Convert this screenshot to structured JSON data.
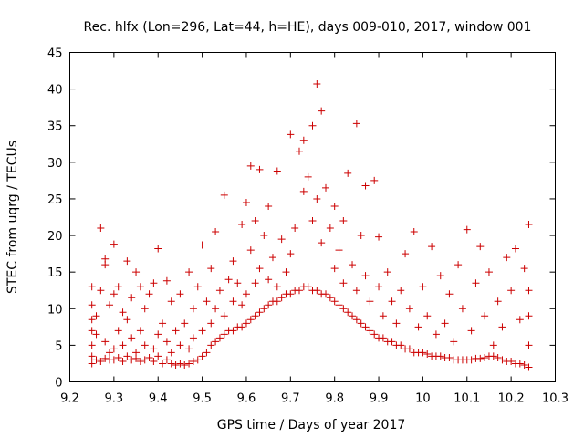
{
  "chart_data": {
    "type": "scatter",
    "title": "Rec. hlfx (Lon=296, Lat=44, h=HE), days 009-010, 2017, window 001",
    "xlabel": "GPS time / Days of year 2017",
    "ylabel": "STEC from uqrg / TECUs",
    "xlim": [
      9.2,
      10.3
    ],
    "ylim": [
      0,
      45
    ],
    "xticks": [
      "9.2",
      "9.3",
      "9.4",
      "9.5",
      "9.6",
      "9.7",
      "9.8",
      "9.9",
      "10",
      "10.1",
      "10.2",
      "10.3"
    ],
    "yticks": [
      "0",
      "5",
      "10",
      "15",
      "20",
      "25",
      "30",
      "35",
      "40",
      "45"
    ],
    "grid": false,
    "legend": "none",
    "marker": "+",
    "marker_color": "#cc0000",
    "series": [
      {
        "points": [
          [
            9.25,
            2.5
          ],
          [
            9.25,
            3.5
          ],
          [
            9.25,
            5.0
          ],
          [
            9.25,
            7.0
          ],
          [
            9.25,
            8.5
          ],
          [
            9.25,
            10.5
          ],
          [
            9.25,
            13.0
          ],
          [
            9.26,
            3.0
          ],
          [
            9.26,
            6.5
          ],
          [
            9.26,
            9.0
          ],
          [
            9.27,
            2.8
          ],
          [
            9.27,
            12.5
          ],
          [
            9.27,
            21.0
          ],
          [
            9.28,
            3.2
          ],
          [
            9.28,
            5.5
          ],
          [
            9.28,
            16.0
          ],
          [
            9.28,
            16.8
          ],
          [
            9.29,
            3.0
          ],
          [
            9.29,
            4.0
          ],
          [
            9.29,
            10.5
          ],
          [
            9.3,
            3.0
          ],
          [
            9.3,
            4.5
          ],
          [
            9.3,
            12.0
          ],
          [
            9.3,
            18.8
          ],
          [
            9.31,
            3.3
          ],
          [
            9.31,
            7.0
          ],
          [
            9.31,
            13.0
          ],
          [
            9.32,
            2.8
          ],
          [
            9.32,
            5.0
          ],
          [
            9.32,
            9.5
          ],
          [
            9.33,
            3.5
          ],
          [
            9.33,
            8.5
          ],
          [
            9.33,
            16.5
          ],
          [
            9.34,
            3.0
          ],
          [
            9.34,
            6.0
          ],
          [
            9.34,
            11.5
          ],
          [
            9.35,
            3.2
          ],
          [
            9.35,
            4.0
          ],
          [
            9.35,
            15.0
          ],
          [
            9.36,
            2.8
          ],
          [
            9.36,
            7.0
          ],
          [
            9.36,
            13.0
          ],
          [
            9.37,
            3.0
          ],
          [
            9.37,
            5.0
          ],
          [
            9.37,
            10.0
          ],
          [
            9.38,
            3.3
          ],
          [
            9.38,
            12.0
          ],
          [
            9.39,
            2.8
          ],
          [
            9.39,
            4.5
          ],
          [
            9.39,
            13.5
          ],
          [
            9.4,
            3.5
          ],
          [
            9.4,
            6.5
          ],
          [
            9.4,
            18.2
          ],
          [
            9.41,
            2.5
          ],
          [
            9.41,
            8.0
          ],
          [
            9.42,
            3.0
          ],
          [
            9.42,
            5.5
          ],
          [
            9.42,
            13.8
          ],
          [
            9.43,
            2.5
          ],
          [
            9.43,
            4.0
          ],
          [
            9.43,
            11.0
          ],
          [
            9.44,
            2.3
          ],
          [
            9.44,
            7.0
          ],
          [
            9.45,
            2.5
          ],
          [
            9.45,
            5.0
          ],
          [
            9.45,
            12.0
          ],
          [
            9.46,
            2.3
          ],
          [
            9.46,
            8.0
          ],
          [
            9.47,
            2.5
          ],
          [
            9.47,
            4.5
          ],
          [
            9.47,
            15.0
          ],
          [
            9.48,
            2.8
          ],
          [
            9.48,
            6.0
          ],
          [
            9.48,
            10.0
          ],
          [
            9.49,
            3.0
          ],
          [
            9.49,
            13.0
          ],
          [
            9.5,
            3.5
          ],
          [
            9.5,
            7.0
          ],
          [
            9.5,
            18.7
          ],
          [
            9.51,
            4.0
          ],
          [
            9.51,
            11.0
          ],
          [
            9.52,
            5.0
          ],
          [
            9.52,
            8.0
          ],
          [
            9.52,
            15.5
          ],
          [
            9.53,
            5.5
          ],
          [
            9.53,
            10.0
          ],
          [
            9.53,
            20.5
          ],
          [
            9.54,
            6.0
          ],
          [
            9.54,
            12.5
          ],
          [
            9.55,
            6.5
          ],
          [
            9.55,
            9.0
          ],
          [
            9.55,
            25.5
          ],
          [
            9.56,
            7.0
          ],
          [
            9.56,
            14.0
          ],
          [
            9.57,
            7.0
          ],
          [
            9.57,
            11.0
          ],
          [
            9.57,
            16.5
          ],
          [
            9.58,
            7.5
          ],
          [
            9.58,
            13.5
          ],
          [
            9.59,
            7.5
          ],
          [
            9.59,
            10.5
          ],
          [
            9.59,
            21.5
          ],
          [
            9.6,
            8.0
          ],
          [
            9.6,
            12.0
          ],
          [
            9.6,
            24.5
          ],
          [
            9.61,
            8.5
          ],
          [
            9.61,
            18.0
          ],
          [
            9.61,
            29.5
          ],
          [
            9.62,
            9.0
          ],
          [
            9.62,
            13.5
          ],
          [
            9.62,
            22.0
          ],
          [
            9.63,
            9.5
          ],
          [
            9.63,
            15.5
          ],
          [
            9.63,
            29.0
          ],
          [
            9.64,
            10.0
          ],
          [
            9.64,
            20.0
          ],
          [
            9.65,
            10.5
          ],
          [
            9.65,
            14.0
          ],
          [
            9.65,
            24.0
          ],
          [
            9.66,
            11.0
          ],
          [
            9.66,
            17.0
          ],
          [
            9.67,
            11.0
          ],
          [
            9.67,
            13.0
          ],
          [
            9.67,
            28.8
          ],
          [
            9.68,
            11.5
          ],
          [
            9.68,
            19.5
          ],
          [
            9.69,
            12.0
          ],
          [
            9.69,
            15.0
          ],
          [
            9.7,
            12.0
          ],
          [
            9.7,
            17.5
          ],
          [
            9.7,
            33.8
          ],
          [
            9.71,
            12.5
          ],
          [
            9.71,
            21.0
          ],
          [
            9.72,
            12.5
          ],
          [
            9.72,
            31.5
          ],
          [
            9.73,
            13.0
          ],
          [
            9.73,
            26.0
          ],
          [
            9.73,
            33.0
          ],
          [
            9.74,
            13.0
          ],
          [
            9.74,
            28.0
          ],
          [
            9.75,
            12.5
          ],
          [
            9.75,
            22.0
          ],
          [
            9.75,
            35.0
          ],
          [
            9.76,
            12.5
          ],
          [
            9.76,
            25.0
          ],
          [
            9.76,
            40.7
          ],
          [
            9.77,
            12.0
          ],
          [
            9.77,
            19.0
          ],
          [
            9.77,
            37.0
          ],
          [
            9.78,
            12.0
          ],
          [
            9.78,
            26.5
          ],
          [
            9.79,
            11.5
          ],
          [
            9.79,
            21.0
          ],
          [
            9.8,
            11.0
          ],
          [
            9.8,
            15.5
          ],
          [
            9.8,
            24.0
          ],
          [
            9.81,
            10.5
          ],
          [
            9.81,
            18.0
          ],
          [
            9.82,
            10.0
          ],
          [
            9.82,
            13.5
          ],
          [
            9.82,
            22.0
          ],
          [
            9.83,
            9.5
          ],
          [
            9.83,
            28.5
          ],
          [
            9.84,
            9.0
          ],
          [
            9.84,
            16.0
          ],
          [
            9.85,
            8.5
          ],
          [
            9.85,
            12.5
          ],
          [
            9.85,
            35.3
          ],
          [
            9.86,
            8.0
          ],
          [
            9.86,
            20.0
          ],
          [
            9.87,
            7.5
          ],
          [
            9.87,
            14.5
          ],
          [
            9.87,
            26.8
          ],
          [
            9.88,
            7.0
          ],
          [
            9.88,
            11.0
          ],
          [
            9.89,
            6.5
          ],
          [
            9.89,
            27.5
          ],
          [
            9.9,
            6.0
          ],
          [
            9.9,
            13.0
          ],
          [
            9.9,
            19.8
          ],
          [
            9.91,
            6.0
          ],
          [
            9.91,
            9.0
          ],
          [
            9.92,
            5.5
          ],
          [
            9.92,
            15.0
          ],
          [
            9.93,
            5.5
          ],
          [
            9.93,
            11.0
          ],
          [
            9.94,
            5.0
          ],
          [
            9.94,
            8.0
          ],
          [
            9.95,
            5.0
          ],
          [
            9.95,
            12.5
          ],
          [
            9.96,
            4.5
          ],
          [
            9.96,
            17.5
          ],
          [
            9.97,
            4.5
          ],
          [
            9.97,
            10.0
          ],
          [
            9.98,
            4.0
          ],
          [
            9.98,
            20.5
          ],
          [
            9.99,
            4.0
          ],
          [
            9.99,
            7.5
          ],
          [
            10.0,
            4.0
          ],
          [
            10.0,
            13.0
          ],
          [
            10.01,
            3.8
          ],
          [
            10.01,
            9.0
          ],
          [
            10.02,
            3.5
          ],
          [
            10.02,
            18.5
          ],
          [
            10.03,
            3.5
          ],
          [
            10.03,
            6.5
          ],
          [
            10.04,
            3.5
          ],
          [
            10.04,
            14.5
          ],
          [
            10.05,
            3.3
          ],
          [
            10.05,
            8.0
          ],
          [
            10.06,
            3.3
          ],
          [
            10.06,
            12.0
          ],
          [
            10.07,
            3.0
          ],
          [
            10.07,
            5.5
          ],
          [
            10.08,
            3.0
          ],
          [
            10.08,
            16.0
          ],
          [
            10.09,
            3.0
          ],
          [
            10.09,
            10.0
          ],
          [
            10.1,
            3.0
          ],
          [
            10.1,
            20.8
          ],
          [
            10.11,
            3.0
          ],
          [
            10.11,
            7.0
          ],
          [
            10.12,
            3.2
          ],
          [
            10.12,
            13.5
          ],
          [
            10.13,
            3.2
          ],
          [
            10.13,
            18.5
          ],
          [
            10.14,
            3.3
          ],
          [
            10.14,
            9.0
          ],
          [
            10.15,
            3.5
          ],
          [
            10.15,
            15.0
          ],
          [
            10.16,
            3.5
          ],
          [
            10.16,
            5.0
          ],
          [
            10.17,
            3.3
          ],
          [
            10.17,
            11.0
          ],
          [
            10.18,
            3.0
          ],
          [
            10.18,
            7.5
          ],
          [
            10.19,
            2.8
          ],
          [
            10.19,
            17.0
          ],
          [
            10.2,
            2.8
          ],
          [
            10.2,
            12.5
          ],
          [
            10.21,
            2.5
          ],
          [
            10.21,
            18.2
          ],
          [
            10.22,
            2.5
          ],
          [
            10.22,
            8.5
          ],
          [
            10.23,
            2.3
          ],
          [
            10.23,
            15.5
          ],
          [
            10.24,
            2.0
          ],
          [
            10.24,
            5.0
          ],
          [
            10.24,
            9.0
          ],
          [
            10.24,
            12.5
          ],
          [
            10.24,
            21.5
          ]
        ]
      }
    ]
  }
}
